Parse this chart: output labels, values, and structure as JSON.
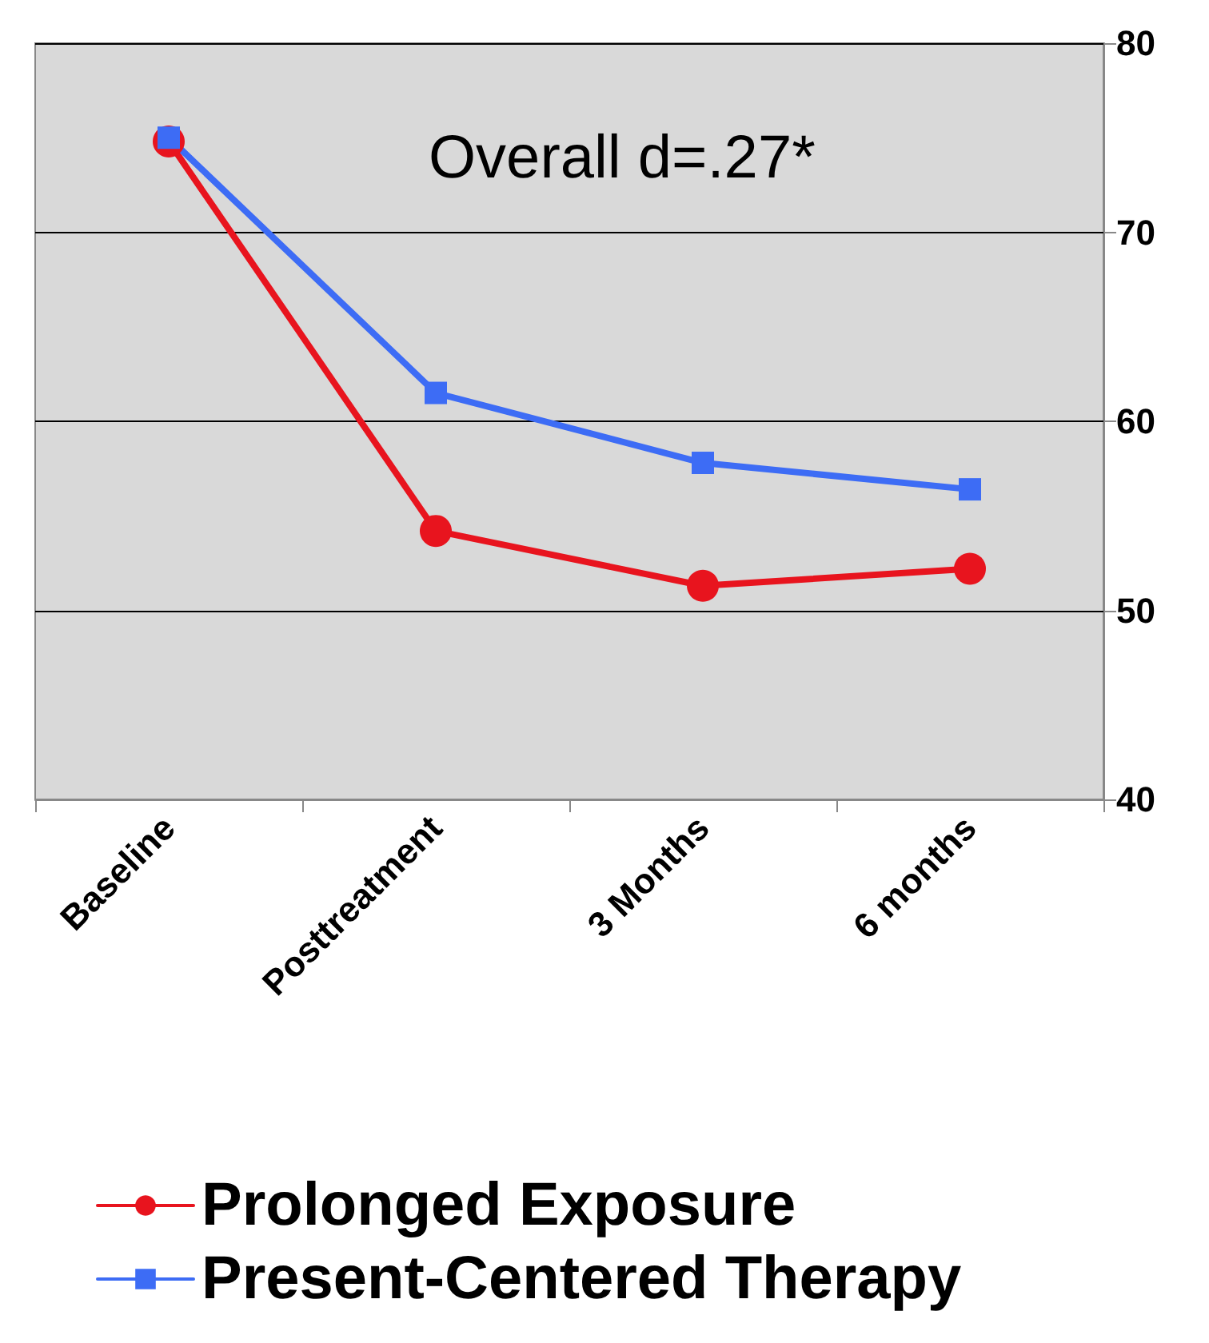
{
  "chart_data": {
    "type": "line",
    "categories": [
      "Baseline",
      "Posttreatment",
      "3 Months",
      "6 months"
    ],
    "series": [
      {
        "name": "Prolonged Exposure",
        "color": "#e8141e",
        "marker": "circle",
        "values": [
          74.8,
          54.2,
          51.3,
          52.2
        ]
      },
      {
        "name": "Present-Centered Therapy",
        "color": "#3d6cf5",
        "marker": "square",
        "values": [
          75,
          61.5,
          57.8,
          56.4
        ]
      }
    ],
    "ylim": [
      40,
      80
    ],
    "yticks": [
      40,
      50,
      60,
      70,
      80
    ],
    "grid": "y",
    "legend": "bottom",
    "annotations": [
      "Overall d=.27*"
    ]
  }
}
